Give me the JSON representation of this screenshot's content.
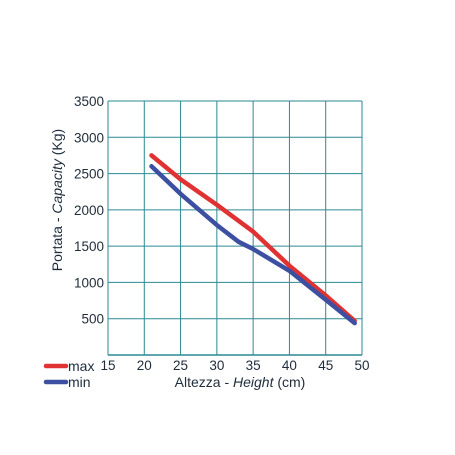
{
  "chart_data": {
    "type": "line",
    "xlim": [
      15,
      50
    ],
    "ylim": [
      0,
      3500
    ],
    "x_ticks": [
      15,
      20,
      25,
      30,
      35,
      40,
      45,
      50
    ],
    "y_ticks": [
      500,
      1000,
      1500,
      2000,
      2500,
      3000,
      3500
    ],
    "x_tick_labels": [
      "15",
      "20",
      "25",
      "30",
      "35",
      "40",
      "45",
      "50"
    ],
    "y_tick_labels": [
      "500",
      "1000",
      "1500",
      "2000",
      "2500",
      "3000",
      "3500"
    ],
    "xlabel_plain": "Altezza - ",
    "xlabel_italic": "Height",
    "xlabel_unit": " (cm)",
    "ylabel_plain": "Portata - ",
    "ylabel_italic": "Capacity",
    "ylabel_unit": " (Kg)",
    "grid": true,
    "legend_position": "bottom-left",
    "series": [
      {
        "name": "max",
        "color": "#e03232",
        "x": [
          21,
          25,
          30,
          35,
          40,
          45,
          49
        ],
        "y": [
          2750,
          2420,
          2070,
          1700,
          1230,
          820,
          470
        ]
      },
      {
        "name": "min",
        "color": "#3c4fa0",
        "x": [
          21,
          25,
          30,
          33,
          35,
          40,
          45,
          49
        ],
        "y": [
          2600,
          2220,
          1790,
          1560,
          1460,
          1160,
          760,
          440
        ]
      }
    ]
  }
}
